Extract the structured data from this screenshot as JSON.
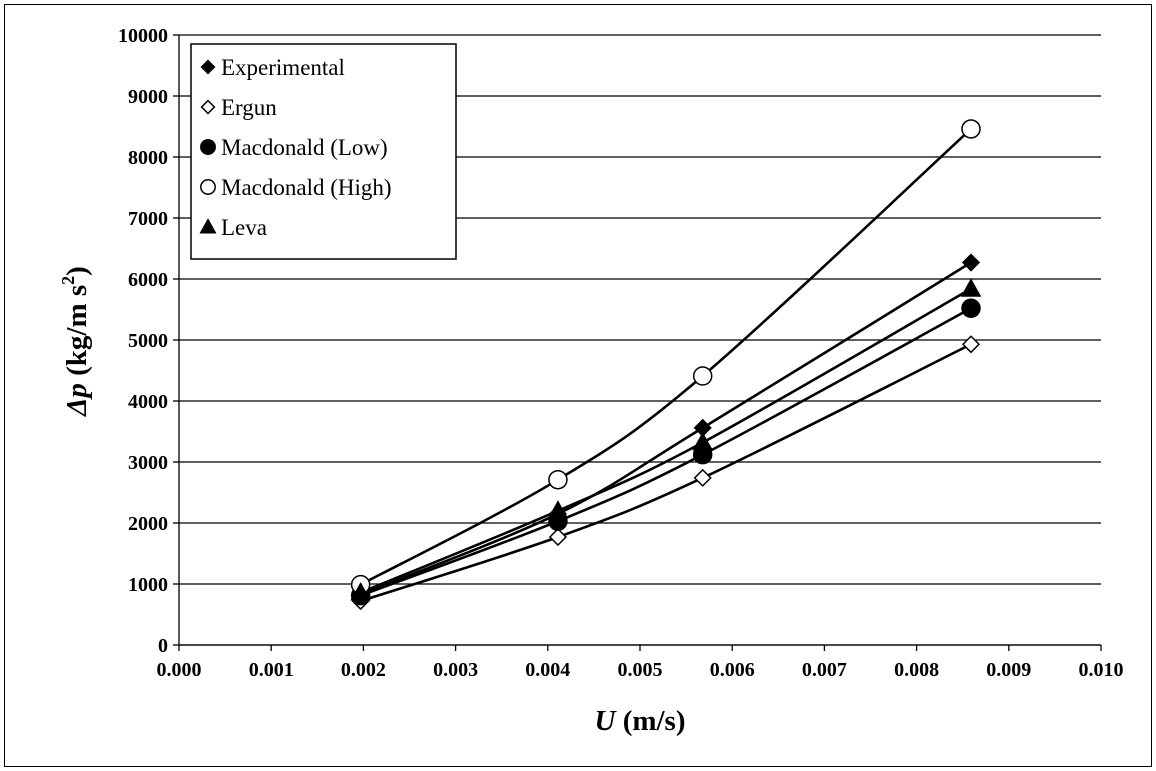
{
  "chart_data": {
    "type": "scatter",
    "x_ticks": [
      "0.000",
      "0.001",
      "0.002",
      "0.003",
      "0.004",
      "0.005",
      "0.006",
      "0.007",
      "0.008",
      "0.009",
      "0.010"
    ],
    "y_ticks": [
      "0",
      "1000",
      "2000",
      "3000",
      "4000",
      "5000",
      "6000",
      "7000",
      "8000",
      "9000",
      "10000"
    ],
    "xlim": [
      0,
      0.01
    ],
    "ylim": [
      0,
      10000
    ],
    "grid": "horizontal",
    "legend_position": "top-left",
    "xlabel": {
      "var": "U",
      "unit": " (m/s)"
    },
    "ylabel": {
      "var": "Δp",
      "unit": " (kg/m s",
      "sup": "2",
      "close": ")"
    },
    "x": [
      0.00197,
      0.00411,
      0.00568,
      0.00859
    ],
    "series": [
      {
        "name": "Experimental",
        "marker": "diamond-filled",
        "values": [
          830,
          2150,
          3560,
          6270
        ]
      },
      {
        "name": "Ergun",
        "marker": "diamond-open",
        "values": [
          720,
          1770,
          2740,
          4930
        ]
      },
      {
        "name": "Macdonald (Low)",
        "marker": "circle-filled",
        "values": [
          810,
          2030,
          3120,
          5520
        ]
      },
      {
        "name": "Macdonald (High)",
        "marker": "circle-open",
        "values": [
          990,
          2710,
          4410,
          8460
        ]
      },
      {
        "name": "Leva",
        "marker": "triangle-filled",
        "values": [
          860,
          2200,
          3320,
          5840
        ]
      }
    ]
  }
}
